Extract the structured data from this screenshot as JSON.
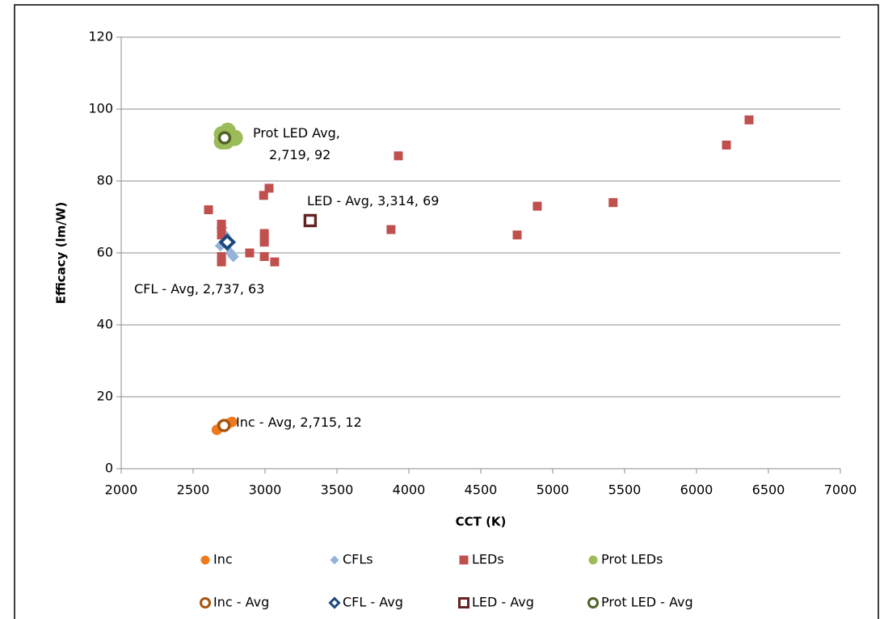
{
  "chart_data": {
    "type": "scatter",
    "x_label": "CCT (K)",
    "y_label": "Efficacy (lm/W)",
    "xlim": [
      2000,
      7000
    ],
    "xticks": [
      2000,
      2500,
      3000,
      3500,
      4000,
      4500,
      5000,
      5500,
      6000,
      6500,
      7000
    ],
    "ylim": [
      0,
      120
    ],
    "yticks": [
      0,
      20,
      40,
      60,
      80,
      100,
      120
    ],
    "grid": true,
    "series": [
      {
        "name": "Inc",
        "color": "#f07a1e",
        "marker": "circle",
        "size": 13,
        "hollow": false,
        "x": [
          2665,
          2700,
          2740,
          2770
        ],
        "values": [
          10.8,
          12,
          12.5,
          13
        ]
      },
      {
        "name": "CFLs",
        "color": "#95b3d7",
        "marker": "diamond",
        "size": 14,
        "hollow": false,
        "x": [
          2700,
          2720,
          2690,
          2740,
          2760,
          2780
        ],
        "values": [
          67,
          65,
          62,
          63,
          60,
          59
        ]
      },
      {
        "name": "LEDs",
        "color": "#c0504d",
        "marker": "square",
        "size": 11,
        "hollow": false,
        "x": [
          2607,
          2697,
          2697,
          2697,
          2697,
          2697,
          2697,
          2893,
          2990,
          3028,
          2995,
          2995,
          2995,
          2995,
          3067,
          3876,
          3927,
          4753,
          4893,
          5420,
          6208,
          6365
        ],
        "values": [
          72,
          68,
          67,
          65,
          59,
          57.5,
          58,
          60,
          76,
          78,
          65.4,
          64,
          63,
          59,
          57.5,
          66.5,
          87,
          65,
          73,
          74,
          90,
          97
        ]
      },
      {
        "name": "Prot LEDs",
        "color": "#9bbb59",
        "marker": "circle",
        "size": 20,
        "hollow": false,
        "x": [
          2700,
          2740,
          2760,
          2700,
          2790,
          2730
        ],
        "values": [
          93,
          94,
          92,
          91,
          92,
          91
        ]
      },
      {
        "name": "Inc - Avg",
        "color": "#a8540e",
        "marker": "circle",
        "size": 17,
        "hollow": true,
        "x": [
          2715
        ],
        "values": [
          12
        ],
        "value_labels": [
          "Inc - Avg, 2,715, 12"
        ]
      },
      {
        "name": "CFL - Avg",
        "color": "#1f497d",
        "marker": "diamond",
        "size": 20,
        "hollow": true,
        "x": [
          2737
        ],
        "values": [
          63
        ],
        "value_labels": [
          "CFL - Avg, 2,737, 63"
        ]
      },
      {
        "name": "LED - Avg",
        "color": "#632523",
        "marker": "square",
        "size": 17,
        "hollow": true,
        "x": [
          3314
        ],
        "values": [
          69
        ],
        "value_labels": [
          "LED - Avg, 3,314, 69"
        ]
      },
      {
        "name": "Prot LED - Avg",
        "color": "#4f6228",
        "marker": "circle",
        "size": 17,
        "hollow": true,
        "x": [
          2719
        ],
        "values": [
          92
        ],
        "value_labels": [
          "Prot LED   Avg,\n2,719, 92"
        ]
      }
    ]
  }
}
